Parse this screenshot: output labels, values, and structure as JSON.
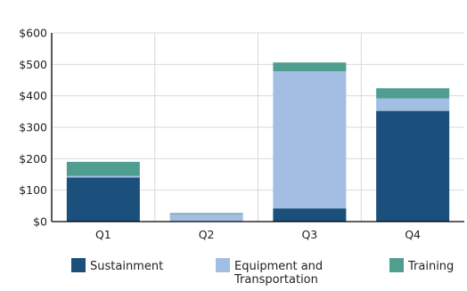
{
  "chart_data": {
    "type": "bar",
    "stacked": true,
    "categories": [
      "Q1",
      "Q2",
      "Q3",
      "Q4"
    ],
    "series": [
      {
        "name": "Sustainment",
        "color": "#1b4f7c",
        "values": [
          140,
          2,
          42,
          352
        ]
      },
      {
        "name": "Equipment and Transportation",
        "color": "#a2bfe3",
        "values": [
          5,
          22,
          436,
          40
        ]
      },
      {
        "name": "Training",
        "color": "#4f9e90",
        "values": [
          45,
          3,
          28,
          32
        ]
      }
    ],
    "y_ticks": [
      "$0",
      "$100",
      "$200",
      "$300",
      "$400",
      "$500",
      "$600"
    ],
    "ylim": [
      0,
      600
    ],
    "grid": {
      "horizontal": true,
      "vertical_between_categories": true
    },
    "legend": "bottom",
    "title": "",
    "xlabel": "",
    "ylabel": ""
  }
}
